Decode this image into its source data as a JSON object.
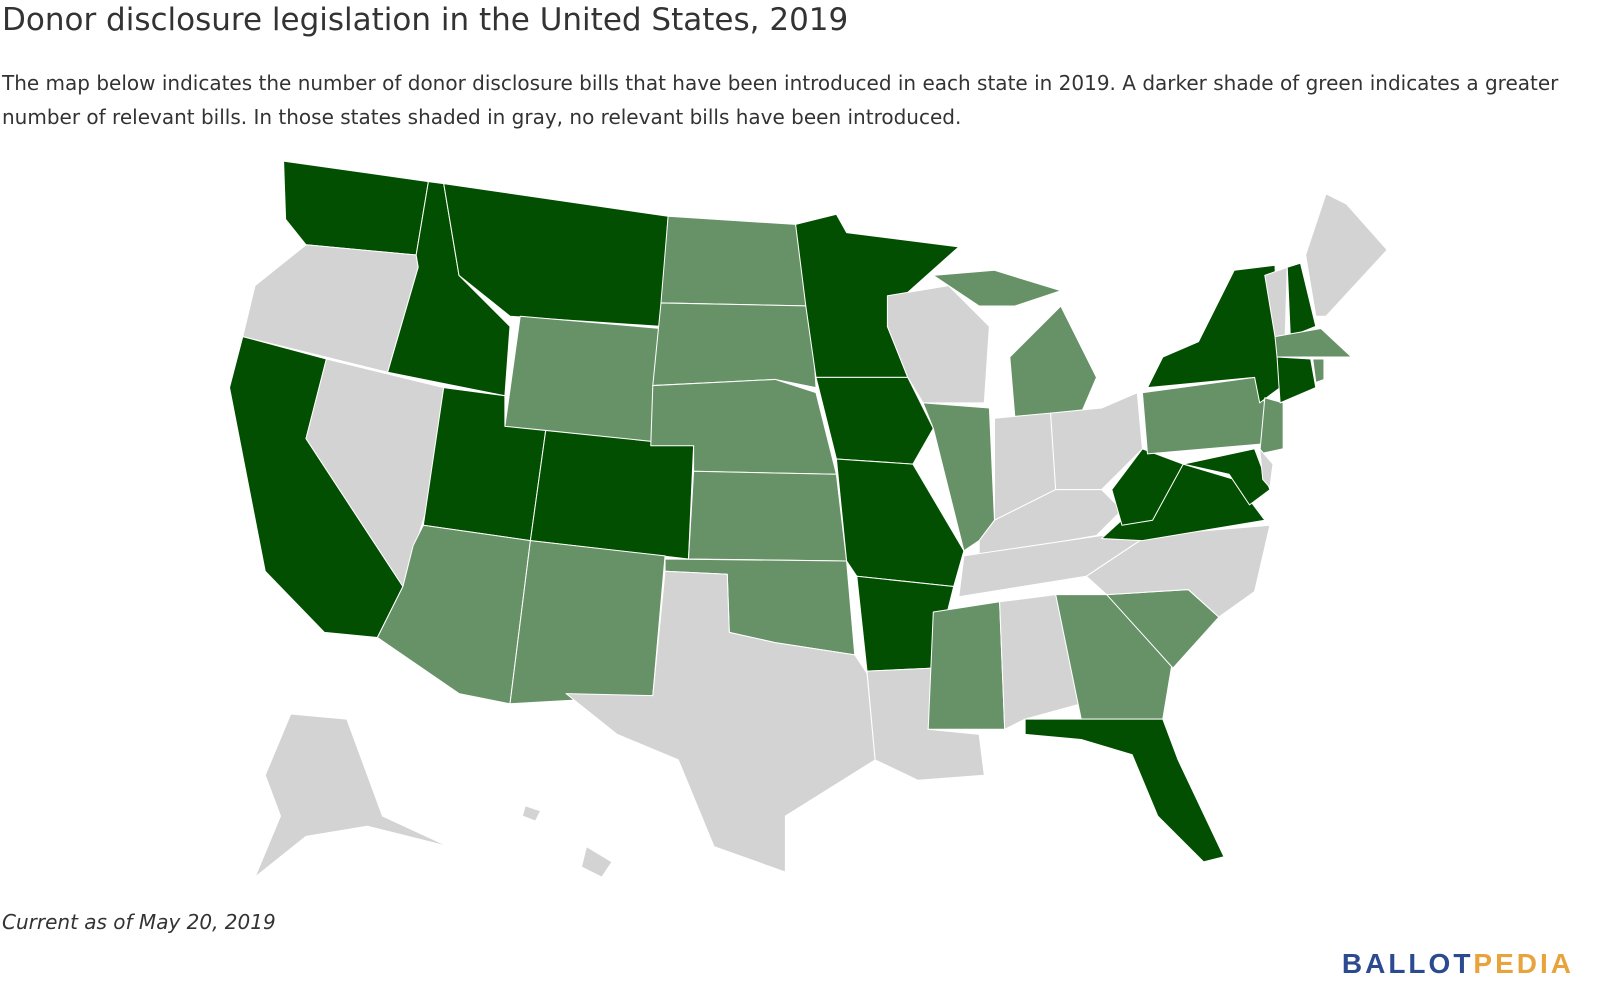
{
  "header": {
    "title": "Donor disclosure legislation in the United States, 2019",
    "description": "The map below indicates the number of donor disclosure bills that have been introduced in each state in 2019. A darker shade of green indicates a greater number of relevant bills. In those states shaded in gray, no relevant bills have been introduced."
  },
  "footer": {
    "note": "Current as of May 20, 2019",
    "logo_left": "BALLOT",
    "logo_right": "PEDIA"
  }
}
